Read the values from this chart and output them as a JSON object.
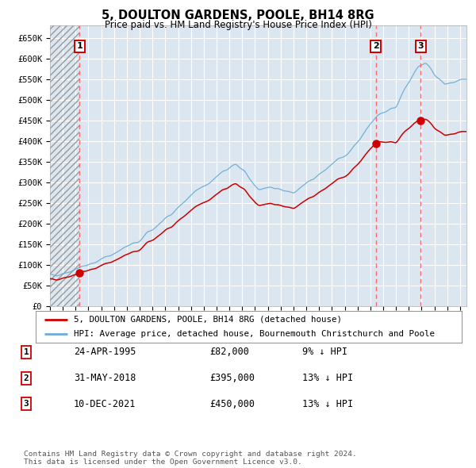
{
  "title": "5, DOULTON GARDENS, POOLE, BH14 8RG",
  "subtitle": "Price paid vs. HM Land Registry's House Price Index (HPI)",
  "background_color": "#dce6f0",
  "plot_bg_color": "#dce6f0",
  "fig_bg_color": "#ffffff",
  "hpi_color": "#6baed6",
  "price_color": "#cc0000",
  "dot_color": "#cc0000",
  "purchases": [
    {
      "date_num": 1995.31,
      "price": 82000,
      "label": "1"
    },
    {
      "date_num": 2018.42,
      "price": 395000,
      "label": "2"
    },
    {
      "date_num": 2021.94,
      "price": 450000,
      "label": "3"
    }
  ],
  "purchase_info": [
    {
      "label": "1",
      "date": "24-APR-1995",
      "price": "£82,000",
      "hpi": "9% ↓ HPI"
    },
    {
      "label": "2",
      "date": "31-MAY-2018",
      "price": "£395,000",
      "hpi": "13% ↓ HPI"
    },
    {
      "label": "3",
      "date": "10-DEC-2021",
      "price": "£450,000",
      "hpi": "13% ↓ HPI"
    }
  ],
  "legend_entries": [
    "5, DOULTON GARDENS, POOLE, BH14 8RG (detached house)",
    "HPI: Average price, detached house, Bournemouth Christchurch and Poole"
  ],
  "footer": "Contains HM Land Registry data © Crown copyright and database right 2024.\nThis data is licensed under the Open Government Licence v3.0.",
  "ylim": [
    0,
    680000
  ],
  "xlim_start": 1993.0,
  "xlim_end": 2025.5,
  "yticks": [
    0,
    50000,
    100000,
    150000,
    200000,
    250000,
    300000,
    350000,
    400000,
    450000,
    500000,
    550000,
    600000,
    650000
  ],
  "ytick_labels": [
    "£0",
    "£50K",
    "£100K",
    "£150K",
    "£200K",
    "£250K",
    "£300K",
    "£350K",
    "£400K",
    "£450K",
    "£500K",
    "£550K",
    "£600K",
    "£650K"
  ]
}
